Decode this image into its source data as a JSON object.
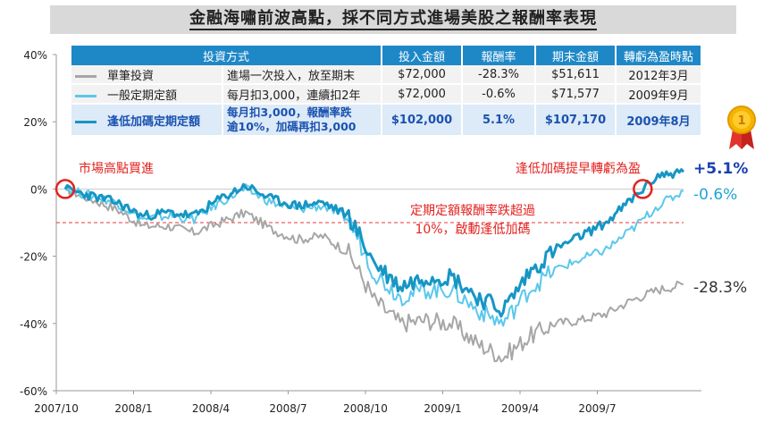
{
  "title": "金融海嘯前波高點，採不同方式進場美股之報酬率表現",
  "table": {
    "headers": [
      "投資方式",
      "投入金額",
      "報酬率",
      "期末金額",
      "轉虧為盈時點"
    ],
    "rows": [
      {
        "name": "單筆投資",
        "desc": "進場一次投入，放至期末",
        "invest": "$72,000",
        "ret": "-28.3%",
        "final": "$51,611",
        "breakeven": "2012年3月",
        "color": "#a6a6a6"
      },
      {
        "name": "一般定期定額",
        "desc": "每月扣3,000，連續扣2年",
        "invest": "$72,000",
        "ret": "-0.6%",
        "final": "$71,577",
        "breakeven": "2009年9月",
        "color": "#5bc8ec"
      },
      {
        "name": "逢低加碼定期定額",
        "desc_line1": "每月扣3,000，報酬率跌",
        "desc_line2": "逾10%，加碼再扣3,000",
        "invest": "$102,000",
        "ret": "5.1%",
        "final": "$107,170",
        "breakeven": "2009年8月",
        "color": "#1696c4"
      }
    ]
  },
  "annotations": {
    "start": "市場高點買進",
    "threshold_line1": "定期定額報酬率跌超過",
    "threshold_line2": "10%，啟動逢低加碼",
    "early": "逢低加碼提早轉虧為盈"
  },
  "end_labels": {
    "lump": "-28.3%",
    "regular": "-0.6%",
    "dip": "+5.1%"
  },
  "chart_data": {
    "type": "line",
    "xlabel": "",
    "ylabel": "",
    "x_ticks": [
      "2007/10",
      "2008/1",
      "2008/4",
      "2008/7",
      "2008/10",
      "2009/1",
      "2009/4",
      "2009/7"
    ],
    "y_ticks": [
      "40%",
      "20%",
      "0%",
      "-20%",
      "-40%",
      "-60%"
    ],
    "ylim": [
      -60,
      40
    ],
    "threshold": -10,
    "grid": false,
    "x": [
      "2007/10",
      "2007/11",
      "2007/12",
      "2008/1",
      "2008/2",
      "2008/3",
      "2008/4",
      "2008/5",
      "2008/6",
      "2008/7",
      "2008/8",
      "2008/9",
      "2008/10",
      "2008/11",
      "2008/12",
      "2009/1",
      "2009/2",
      "2009/3",
      "2009/4",
      "2009/5",
      "2009/6",
      "2009/7",
      "2009/8",
      "2009/9",
      "2009/10"
    ],
    "series": [
      {
        "name": "單筆投資",
        "color": "#a6a6a6",
        "values": [
          0,
          -3,
          -6,
          -11,
          -11,
          -13,
          -10,
          -7,
          -12,
          -15,
          -14,
          -19,
          -33,
          -40,
          -39,
          -40,
          -46,
          -50,
          -44,
          -40,
          -39,
          -37,
          -33,
          -30,
          -28.3
        ]
      },
      {
        "name": "一般定期定額",
        "color": "#5bc8ec",
        "values": [
          0,
          -2,
          -4,
          -9,
          -8,
          -9,
          -4,
          0,
          -4,
          -6,
          -5,
          -9,
          -25,
          -32,
          -30,
          -30,
          -36,
          -40,
          -30,
          -24,
          -21,
          -18,
          -12,
          -5,
          -0.6
        ]
      },
      {
        "name": "逢低加碼定期定額",
        "color": "#1696c4",
        "values": [
          0,
          -2,
          -4,
          -8,
          -7,
          -8,
          -3,
          1,
          -3,
          -5,
          -4,
          -8,
          -22,
          -29,
          -26,
          -26,
          -32,
          -36,
          -25,
          -18,
          -14,
          -10,
          -3,
          4,
          5.1
        ]
      }
    ]
  }
}
